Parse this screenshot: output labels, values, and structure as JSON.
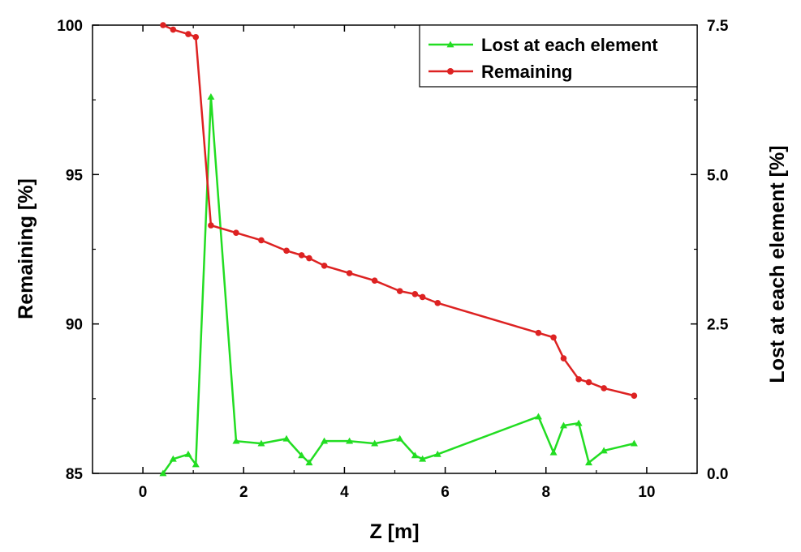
{
  "chart_data": {
    "type": "line",
    "title": "",
    "xlabel": "Z [m]",
    "ylabel": "Remaining [%]",
    "y2label": "Lost at each element [%]",
    "xlim": [
      -1,
      11
    ],
    "ylim": [
      85,
      100
    ],
    "y2lim": [
      0,
      7.5
    ],
    "x_ticks": [
      0,
      2,
      4,
      6,
      8,
      10
    ],
    "x_tick_labels": [
      "0",
      "2",
      "4",
      "6",
      "8",
      "10"
    ],
    "y_ticks": [
      85,
      90,
      95,
      100
    ],
    "y_tick_labels": [
      "85",
      "90",
      "95",
      "100"
    ],
    "y2_ticks": [
      0,
      2.5,
      5,
      7.5
    ],
    "y2_tick_labels": [
      "0.0",
      "2.5",
      "5.0",
      "7.5"
    ],
    "grid": false,
    "legend_position": "top-right",
    "series": [
      {
        "name": "Lost at each element",
        "axis": "right",
        "color": "#22dd22",
        "marker": "triangle",
        "x": [
          0.4,
          0.6,
          0.9,
          1.05,
          1.35,
          1.85,
          2.35,
          2.85,
          3.15,
          3.3,
          3.6,
          4.1,
          4.6,
          5.1,
          5.4,
          5.55,
          5.85,
          7.85,
          8.15,
          8.35,
          8.65,
          8.85,
          9.15,
          9.75
        ],
        "y": [
          0.0,
          0.24,
          0.32,
          0.15,
          6.3,
          0.54,
          0.5,
          0.58,
          0.3,
          0.18,
          0.54,
          0.54,
          0.5,
          0.58,
          0.3,
          0.24,
          0.32,
          0.95,
          0.35,
          0.8,
          0.84,
          0.18,
          0.38,
          0.5
        ]
      },
      {
        "name": "Remaining",
        "axis": "left",
        "color": "#dd2222",
        "marker": "circle",
        "x": [
          0.4,
          0.6,
          0.9,
          1.05,
          1.35,
          1.85,
          2.35,
          2.85,
          3.15,
          3.3,
          3.6,
          4.1,
          4.6,
          5.1,
          5.4,
          5.55,
          5.85,
          7.85,
          8.15,
          8.35,
          8.65,
          8.85,
          9.15,
          9.75
        ],
        "y": [
          100.0,
          99.85,
          99.7,
          99.6,
          93.3,
          93.05,
          92.8,
          92.45,
          92.3,
          92.2,
          91.95,
          91.7,
          91.45,
          91.1,
          91.0,
          90.9,
          90.7,
          89.7,
          89.55,
          88.85,
          88.15,
          88.05,
          87.85,
          87.6
        ]
      }
    ]
  }
}
